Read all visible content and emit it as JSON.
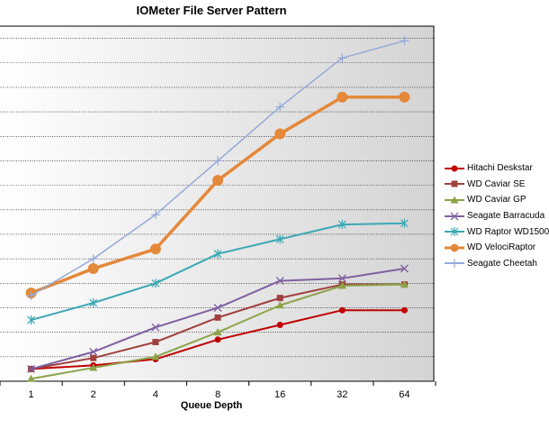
{
  "chart_data": {
    "type": "line",
    "title": "IOMeter File Server Pattern",
    "xlabel": "Queue Depth",
    "ylabel": "",
    "categories": [
      "1",
      "2",
      "4",
      "8",
      "16",
      "32",
      "64"
    ],
    "ylim": [
      0,
      14.5
    ],
    "grid": true,
    "legend_position": "right",
    "series": [
      {
        "name": "Hitachi Deskstar",
        "color": "#c00000",
        "marker": "circle",
        "values": [
          0.5,
          0.65,
          0.9,
          1.7,
          2.3,
          2.9,
          2.9
        ]
      },
      {
        "name": "WD Caviar SE",
        "color": "#a0403e",
        "marker": "square",
        "values": [
          0.5,
          0.95,
          1.6,
          2.6,
          3.4,
          3.95,
          3.95
        ]
      },
      {
        "name": "WD Caviar GP",
        "color": "#8ca34a",
        "marker": "triangle",
        "values": [
          0.1,
          0.55,
          1.0,
          2.0,
          3.1,
          3.9,
          3.95
        ]
      },
      {
        "name": "Seagate Barracuda",
        "color": "#7f5fa0",
        "marker": "x",
        "values": [
          0.5,
          1.2,
          2.2,
          3.0,
          4.1,
          4.2,
          4.6
        ]
      },
      {
        "name": "WD Raptor WD1500",
        "color": "#3aa8b4",
        "marker": "star",
        "values": [
          2.5,
          3.2,
          4.0,
          5.2,
          5.8,
          6.4,
          6.45
        ]
      },
      {
        "name": "WD VelociRaptor",
        "color": "#e5883a",
        "marker": "bigcircle",
        "values": [
          3.6,
          4.6,
          5.4,
          8.2,
          10.1,
          11.6,
          11.6
        ]
      },
      {
        "name": "Seagate Cheetah",
        "color": "#94a9d8",
        "marker": "plus",
        "values": [
          3.5,
          5.0,
          6.8,
          9.0,
          11.2,
          13.2,
          13.9
        ]
      }
    ]
  }
}
